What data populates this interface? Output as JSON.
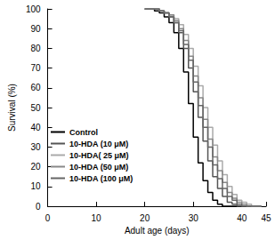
{
  "chart_data": {
    "type": "line",
    "line_style": "step",
    "x_label": "Adult age (days)",
    "y_label": "Survival (%)",
    "x": [
      20,
      21,
      22,
      23,
      24,
      25,
      26,
      27,
      28,
      29,
      30,
      31,
      32,
      33,
      34,
      35,
      36,
      37,
      38,
      39,
      40,
      41,
      42,
      43,
      44
    ],
    "series": [
      {
        "name": "Control",
        "color": "#000000",
        "values": [
          100,
          100,
          99,
          98,
          96,
          93,
          88,
          80,
          68,
          52,
          35,
          22,
          13,
          7,
          3,
          1,
          0,
          0,
          0,
          0,
          0,
          0,
          0,
          0,
          0
        ]
      },
      {
        "name": "10-HDA (10 μM)",
        "color": "#555555",
        "values": [
          100,
          100,
          100,
          99,
          98,
          96,
          93,
          88,
          80,
          70,
          58,
          45,
          33,
          23,
          15,
          9,
          5,
          2,
          1,
          0,
          0,
          0,
          0,
          0,
          0
        ]
      },
      {
        "name": "10-HDA( 25 μM)",
        "color": "#aaaaaa",
        "values": [
          100,
          100,
          100,
          99,
          98,
          97,
          95,
          92,
          87,
          80,
          71,
          61,
          50,
          40,
          31,
          23,
          16,
          10,
          6,
          3,
          2,
          1,
          0,
          0,
          0
        ]
      },
      {
        "name": "10-HDA (50 μM)",
        "color": "#888888",
        "values": [
          100,
          100,
          100,
          99,
          98,
          97,
          94,
          90,
          84,
          76,
          66,
          55,
          44,
          34,
          25,
          18,
          12,
          7,
          4,
          2,
          1,
          0,
          0,
          0,
          0
        ]
      },
      {
        "name": "10-HDA (100 μM)",
        "color": "#666666",
        "values": [
          100,
          100,
          100,
          99,
          98,
          96,
          93,
          89,
          82,
          74,
          63,
          51,
          40,
          30,
          21,
          14,
          9,
          5,
          3,
          1,
          0,
          0,
          0,
          0,
          0
        ]
      }
    ],
    "xlim": [
      0,
      45
    ],
    "xticks": [
      0,
      10,
      20,
      30,
      40
    ],
    "ylim": [
      0,
      100
    ],
    "yticks": [
      0,
      10,
      20,
      30,
      40,
      50,
      60,
      70,
      80,
      90,
      100
    ],
    "grid": false,
    "legend": "lower left"
  }
}
